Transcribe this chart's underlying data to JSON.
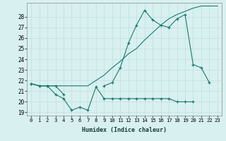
{
  "xlabel": "Humidex (Indice chaleur)",
  "x": [
    0,
    1,
    2,
    3,
    4,
    5,
    6,
    7,
    8,
    9,
    10,
    11,
    12,
    13,
    14,
    15,
    16,
    17,
    18,
    19,
    20,
    21,
    22,
    23
  ],
  "line1_y": [
    21.7,
    21.5,
    21.5,
    21.5,
    21.5,
    21.5,
    21.5,
    21.5,
    22.0,
    22.5,
    23.2,
    23.8,
    24.5,
    25.0,
    25.8,
    26.5,
    27.2,
    27.8,
    28.2,
    28.5,
    28.8,
    29.0,
    29.0,
    29.0
  ],
  "line2_y": [
    21.7,
    21.5,
    21.5,
    21.5,
    20.7,
    null,
    null,
    null,
    null,
    21.5,
    21.8,
    23.2,
    25.5,
    27.2,
    28.6,
    27.7,
    27.2,
    27.0,
    27.8,
    28.2,
    null,
    null,
    null,
    null
  ],
  "line2_marked": [
    21.7,
    21.5,
    21.5,
    21.5,
    20.7,
    null,
    null,
    null,
    null,
    21.5,
    21.8,
    23.2,
    25.5,
    27.2,
    28.6,
    27.7,
    27.2,
    27.0,
    27.8,
    28.2,
    23.5,
    23.2,
    21.8,
    null
  ],
  "line3_y": [
    21.7,
    21.5,
    21.5,
    20.7,
    20.3,
    19.2,
    19.5,
    19.2,
    21.4,
    null,
    null,
    null,
    null,
    null,
    null,
    null,
    null,
    null,
    null,
    null,
    null,
    null,
    null,
    null
  ],
  "line3_full": [
    21.7,
    21.5,
    21.5,
    20.7,
    20.3,
    19.2,
    19.5,
    19.2,
    21.4,
    20.3,
    20.3,
    20.3,
    20.3,
    20.3,
    20.3,
    20.3,
    20.3,
    20.3,
    20.0,
    20.0,
    20.0,
    null,
    null,
    null
  ],
  "ylim": [
    18.7,
    29.3
  ],
  "yticks": [
    19,
    20,
    21,
    22,
    23,
    24,
    25,
    26,
    27,
    28
  ],
  "xticks": [
    0,
    1,
    2,
    3,
    4,
    5,
    6,
    7,
    8,
    9,
    10,
    11,
    12,
    13,
    14,
    15,
    16,
    17,
    18,
    19,
    20,
    21,
    22,
    23
  ],
  "line_color": "#1a7a6e",
  "bg_color": "#d8f0f0",
  "grid_color": "#c0dede"
}
